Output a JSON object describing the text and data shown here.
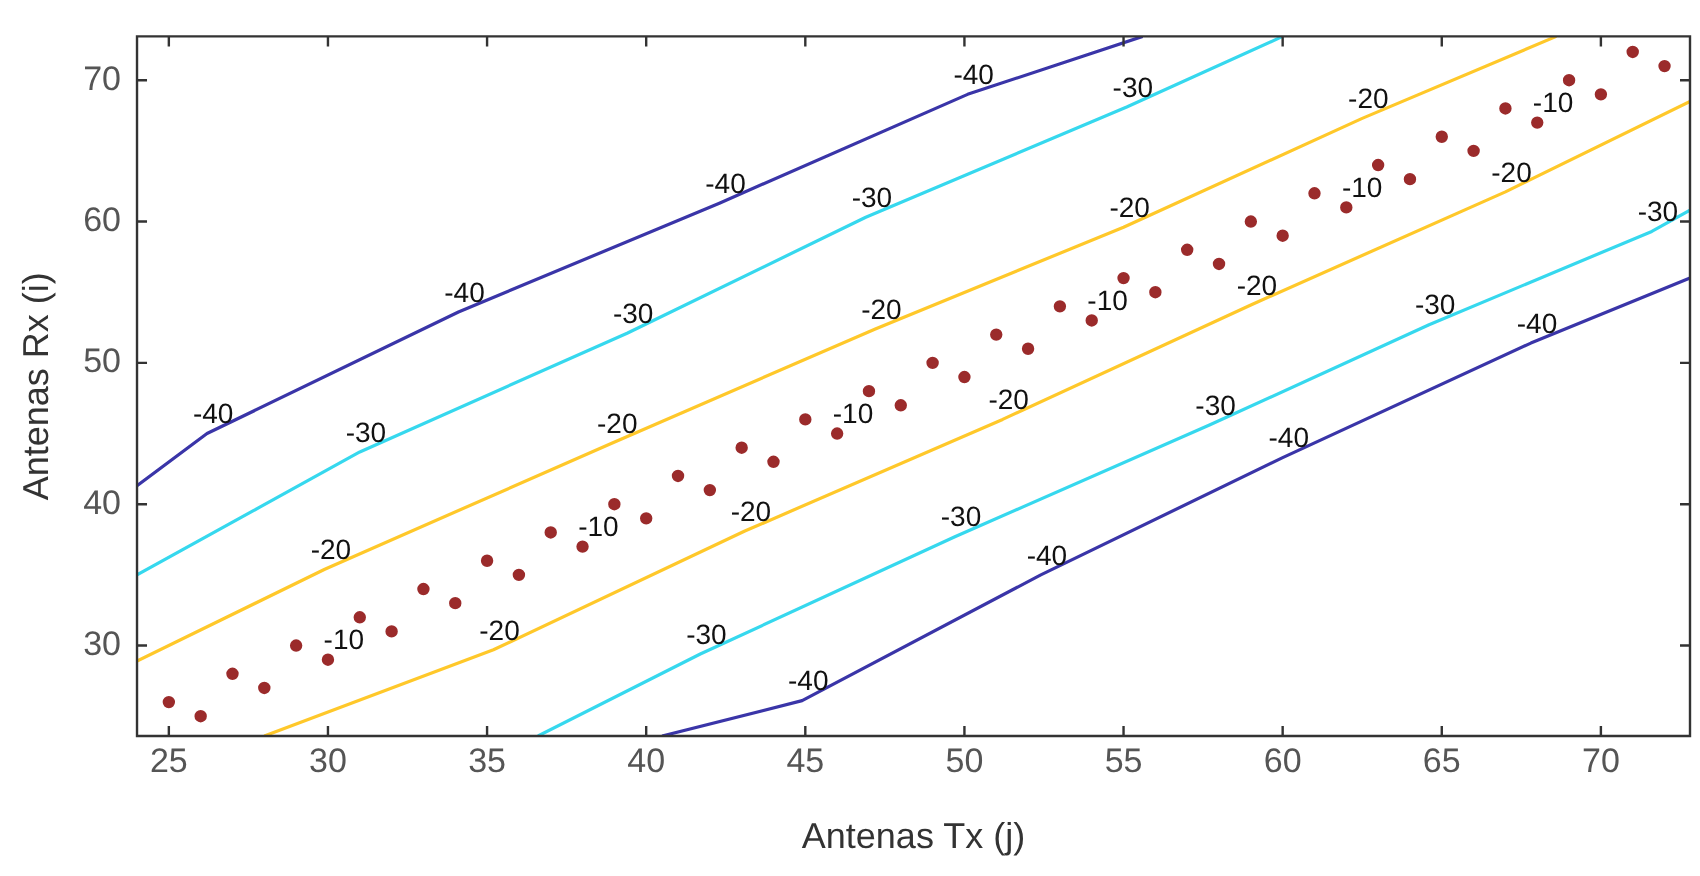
{
  "chart_data": {
    "type": "line",
    "xlabel": "Antenas Tx (j)",
    "ylabel": "Antenas Rx (i)",
    "xlim": [
      24,
      72.8
    ],
    "ylim": [
      23.6,
      73.1
    ],
    "xticks": [
      25,
      30,
      35,
      40,
      45,
      50,
      55,
      60,
      65,
      70
    ],
    "yticks": [
      30,
      40,
      50,
      60,
      70
    ],
    "grid": false,
    "legend": false,
    "series": [
      {
        "color": "#3a35a8",
        "x": [
          24,
          26.2,
          34.1,
          42.3,
          50.1,
          55.6
        ],
        "values": [
          41.3,
          45,
          53.6,
          61.3,
          69,
          73.1
        ]
      },
      {
        "color": "#36d8ee",
        "x": [
          24,
          31,
          39.4,
          46.9,
          55.1,
          60
        ],
        "values": [
          35,
          43.7,
          52.1,
          60.3,
          68.1,
          73.1
        ]
      },
      {
        "color": "#ffc82a",
        "x": [
          24,
          29.9,
          38.9,
          47.2,
          55,
          62.5,
          68.6
        ],
        "values": [
          28.9,
          35.4,
          44.3,
          52.4,
          59.6,
          67.3,
          73.1
        ]
      },
      {
        "color": "#ffc82a",
        "x": [
          28,
          35.2,
          43.1,
          51.2,
          59,
          67,
          72.8
        ],
        "values": [
          23.6,
          29.7,
          38.1,
          46,
          54.1,
          62.1,
          68.5
        ]
      },
      {
        "color": "#36d8ee",
        "x": [
          36.6,
          41.7,
          49.7,
          57.7,
          64.6,
          71.6,
          72.8
        ],
        "values": [
          23.6,
          29.4,
          37.7,
          45.6,
          52.7,
          59.3,
          60.8
        ]
      },
      {
        "color": "#3a35a8",
        "x": [
          40.5,
          44.9,
          52.4,
          60,
          67.8,
          72.8
        ],
        "values": [
          23.6,
          26.1,
          35,
          43.3,
          51.4,
          56
        ]
      },
      {
        "type": "scatter",
        "marker": "circle",
        "color": "#9b2b2b",
        "x": [
          25,
          26,
          27,
          28,
          29,
          30,
          31,
          32,
          33,
          34,
          35,
          36,
          37,
          38,
          39,
          40,
          41,
          42,
          43,
          44,
          45,
          46,
          47,
          48,
          49,
          50,
          51,
          52,
          53,
          54,
          55,
          56,
          57,
          58,
          59,
          60,
          61,
          62,
          63,
          64,
          65,
          66,
          67,
          68,
          69,
          70,
          71,
          72
        ],
        "values": [
          26,
          25,
          28,
          27,
          30,
          29,
          32,
          31,
          34,
          33,
          36,
          35,
          38,
          37,
          40,
          39,
          42,
          41,
          44,
          43,
          46,
          45,
          48,
          47,
          50,
          49,
          52,
          51,
          54,
          53,
          56,
          55,
          58,
          57,
          60,
          59,
          62,
          61,
          64,
          63,
          66,
          65,
          68,
          67,
          70,
          69,
          72,
          71
        ]
      }
    ],
    "annotations": [
      {
        "text": "-40",
        "x": 26.2,
        "y": 45
      },
      {
        "text": "-40",
        "x": 34.1,
        "y": 53.6
      },
      {
        "text": "-40",
        "x": 42.3,
        "y": 61.3
      },
      {
        "text": "-40",
        "x": 50.1,
        "y": 69
      },
      {
        "text": "-30",
        "x": 31,
        "y": 43.7
      },
      {
        "text": "-30",
        "x": 39.4,
        "y": 52.1
      },
      {
        "text": "-30",
        "x": 46.9,
        "y": 60.3
      },
      {
        "text": "-30",
        "x": 55.1,
        "y": 68.1
      },
      {
        "text": "-20",
        "x": 29.9,
        "y": 35.4
      },
      {
        "text": "-20",
        "x": 38.9,
        "y": 44.3
      },
      {
        "text": "-20",
        "x": 47.2,
        "y": 52.4
      },
      {
        "text": "-20",
        "x": 55,
        "y": 59.6
      },
      {
        "text": "-20",
        "x": 62.5,
        "y": 67.3
      },
      {
        "text": "-10",
        "x": 31,
        "y": 32
      },
      {
        "text": "-10",
        "x": 39,
        "y": 40
      },
      {
        "text": "-10",
        "x": 47,
        "y": 48
      },
      {
        "text": "-10",
        "x": 55,
        "y": 56
      },
      {
        "text": "-10",
        "x": 63,
        "y": 64
      },
      {
        "text": "-10",
        "x": 69,
        "y": 70
      },
      {
        "text": "-20",
        "x": 35.2,
        "y": 29.7
      },
      {
        "text": "-20",
        "x": 43.1,
        "y": 38.1
      },
      {
        "text": "-20",
        "x": 51.2,
        "y": 46
      },
      {
        "text": "-20",
        "x": 59,
        "y": 54.1
      },
      {
        "text": "-20",
        "x": 67,
        "y": 62.1
      },
      {
        "text": "-30",
        "x": 41.7,
        "y": 29.4
      },
      {
        "text": "-30",
        "x": 49.7,
        "y": 37.7
      },
      {
        "text": "-30",
        "x": 57.7,
        "y": 45.6
      },
      {
        "text": "-30",
        "x": 64.6,
        "y": 52.7
      },
      {
        "text": "-30",
        "x": 71.6,
        "y": 59.3
      },
      {
        "text": "-40",
        "x": 44.9,
        "y": 26.1
      },
      {
        "text": "-40",
        "x": 52.4,
        "y": 35
      },
      {
        "text": "-40",
        "x": 60,
        "y": 43.3
      },
      {
        "text": "-40",
        "x": 67.8,
        "y": 51.4
      }
    ]
  }
}
